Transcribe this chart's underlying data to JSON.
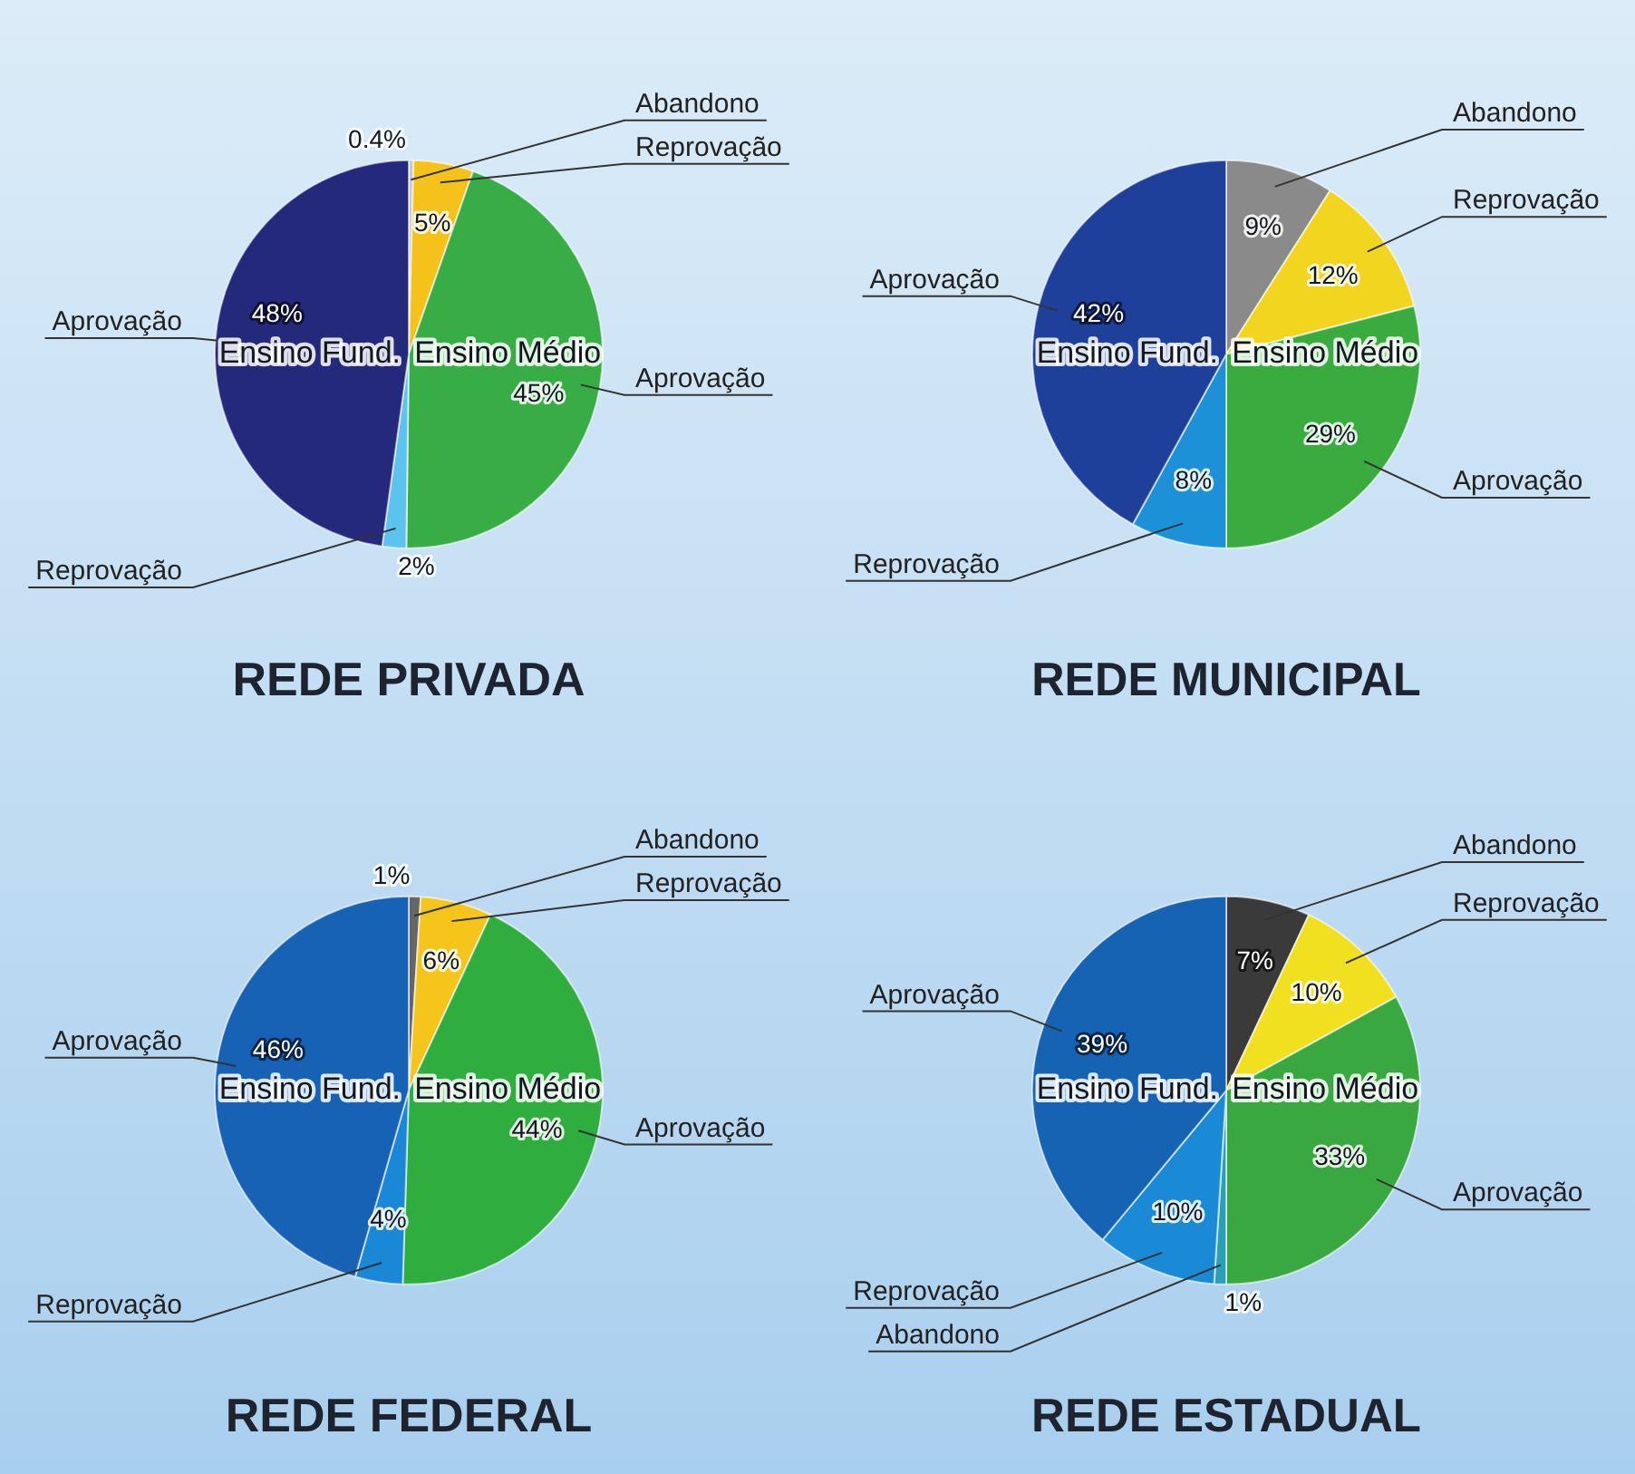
{
  "chart_data": [
    {
      "type": "pie",
      "title": "REDE PRIVADA",
      "annotations": [
        "Ensino Fund.",
        "Ensino Médio"
      ],
      "legend": false,
      "categories": [
        "Abandono",
        "Reprovação",
        "Aprovação",
        "Reprovação",
        "Aprovação"
      ],
      "values": [
        0.4,
        5,
        45,
        2,
        48
      ],
      "value_labels": [
        "0.4%",
        "5%",
        "45%",
        "2%",
        "48%"
      ],
      "colors": [
        "#c8c8c8",
        "#f5c21b",
        "#38ad45",
        "#5cc3ee",
        "#25297c"
      ]
    },
    {
      "type": "pie",
      "title": "REDE MUNICIPAL",
      "annotations": [
        "Ensino Fund.",
        "Ensino Médio"
      ],
      "legend": false,
      "categories": [
        "Abandono",
        "Reprovação",
        "Aprovação",
        "Reprovação",
        "Aprovação"
      ],
      "values": [
        9,
        12,
        29,
        8,
        42
      ],
      "value_labels": [
        "9%",
        "12%",
        "29%",
        "8%",
        "42%"
      ],
      "colors": [
        "#8a8a8a",
        "#f2d51e",
        "#3aab3f",
        "#1d91d8",
        "#1e3f9a"
      ]
    },
    {
      "type": "pie",
      "title": "REDE FEDERAL",
      "annotations": [
        "Ensino Fund.",
        "Ensino Médio"
      ],
      "legend": false,
      "categories": [
        "Abandono",
        "Reprovação",
        "Aprovação",
        "Reprovação",
        "Aprovação"
      ],
      "values": [
        1,
        6,
        44,
        4,
        46
      ],
      "value_labels": [
        "1%",
        "6%",
        "44%",
        "4%",
        "46%"
      ],
      "colors": [
        "#666666",
        "#f5c51b",
        "#2fae3f",
        "#1a88d6",
        "#1762b5"
      ]
    },
    {
      "type": "pie",
      "title": "REDE ESTADUAL",
      "annotations": [
        "Ensino Fund.",
        "Ensino Médio"
      ],
      "legend": false,
      "categories": [
        "Abandono",
        "Reprovação",
        "Aprovação",
        "Abandono",
        "Reprovação",
        "Aprovação"
      ],
      "values": [
        7,
        10,
        33,
        1,
        10,
        39
      ],
      "value_labels": [
        "7%",
        "10%",
        "33%",
        "1%",
        "10%",
        "39%"
      ],
      "colors": [
        "#3a3a3a",
        "#f0e020",
        "#3aa840",
        "#2aa0b8",
        "#1b8ad6",
        "#1662b3"
      ]
    }
  ]
}
